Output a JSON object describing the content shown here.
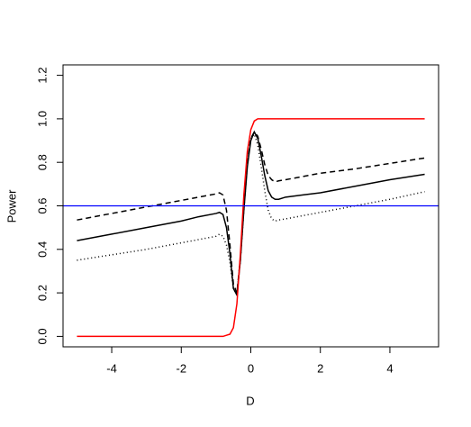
{
  "chart_data": {
    "type": "line",
    "x_label": "D",
    "y_label": "Power",
    "xlim": [
      -5.4,
      5.4
    ],
    "ylim": [
      -0.048,
      1.248
    ],
    "xticks": [
      -4,
      -2,
      0,
      2,
      4
    ],
    "yticks": [
      {
        "value": 0,
        "label": "0.0"
      },
      {
        "value": 0.2,
        "label": "0.2"
      },
      {
        "value": 0.4,
        "label": "0.4"
      },
      {
        "value": 0.6,
        "label": "0.6"
      },
      {
        "value": 0.8,
        "label": "0.8"
      },
      {
        "value": 1,
        "label": "1.0"
      },
      {
        "value": 1.2,
        "label": "1.2"
      }
    ],
    "x": [
      -5,
      -4,
      -3,
      -2,
      -1.5,
      -1,
      -0.9,
      -0.8,
      -0.7,
      -0.6,
      -0.5,
      -0.4,
      -0.3,
      -0.2,
      -0.1,
      0,
      0.1,
      0.2,
      0.3,
      0.4,
      0.5,
      0.6,
      0.7,
      0.8,
      1,
      1.5,
      2,
      3,
      4,
      5
    ],
    "series": [
      {
        "color": "#000000",
        "linestyle": "solid",
        "values": [
          0.44,
          0.47,
          0.5,
          0.53,
          0.55,
          0.565,
          0.57,
          0.56,
          0.5,
          0.38,
          0.22,
          0.19,
          0.35,
          0.58,
          0.78,
          0.9,
          0.94,
          0.91,
          0.83,
          0.74,
          0.67,
          0.64,
          0.63,
          0.63,
          0.64,
          0.65,
          0.66,
          0.69,
          0.72,
          0.745
        ]
      },
      {
        "color": "#000000",
        "linestyle": "dashed",
        "values": [
          0.535,
          0.565,
          0.595,
          0.625,
          0.64,
          0.655,
          0.66,
          0.65,
          0.58,
          0.42,
          0.24,
          0.2,
          0.36,
          0.6,
          0.8,
          0.91,
          0.94,
          0.92,
          0.86,
          0.79,
          0.74,
          0.72,
          0.71,
          0.715,
          0.72,
          0.735,
          0.75,
          0.77,
          0.795,
          0.82
        ]
      },
      {
        "color": "#000000",
        "linestyle": "dotted",
        "values": [
          0.35,
          0.375,
          0.4,
          0.43,
          0.445,
          0.46,
          0.47,
          0.46,
          0.42,
          0.34,
          0.22,
          0.19,
          0.35,
          0.58,
          0.79,
          0.91,
          0.93,
          0.88,
          0.78,
          0.67,
          0.58,
          0.54,
          0.53,
          0.535,
          0.54,
          0.555,
          0.57,
          0.6,
          0.63,
          0.665
        ]
      },
      {
        "color": "#ff0000",
        "linestyle": "solid",
        "values": [
          0,
          0,
          0,
          0,
          0,
          0,
          0,
          0,
          0.005,
          0.01,
          0.04,
          0.15,
          0.38,
          0.65,
          0.85,
          0.95,
          0.99,
          1,
          1,
          1,
          1,
          1,
          1,
          1,
          1,
          1,
          1,
          1,
          1,
          1
        ]
      }
    ],
    "hline": {
      "value": 0.6,
      "color": "#0000ff"
    }
  }
}
